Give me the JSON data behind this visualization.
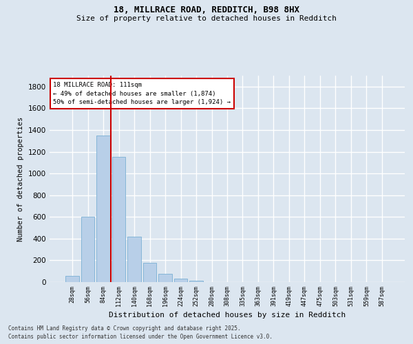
{
  "title_line1": "18, MILLRACE ROAD, REDDITCH, B98 8HX",
  "title_line2": "Size of property relative to detached houses in Redditch",
  "xlabel": "Distribution of detached houses by size in Redditch",
  "ylabel": "Number of detached properties",
  "categories": [
    "28sqm",
    "56sqm",
    "84sqm",
    "112sqm",
    "140sqm",
    "168sqm",
    "196sqm",
    "224sqm",
    "252sqm",
    "280sqm",
    "308sqm",
    "335sqm",
    "363sqm",
    "391sqm",
    "419sqm",
    "447sqm",
    "475sqm",
    "503sqm",
    "531sqm",
    "559sqm",
    "587sqm"
  ],
  "values": [
    60,
    600,
    1350,
    1150,
    420,
    175,
    75,
    30,
    10,
    0,
    0,
    0,
    0,
    0,
    0,
    0,
    0,
    0,
    0,
    0,
    0
  ],
  "bar_color": "#b8cfe8",
  "bar_edge_color": "#7aafd4",
  "vertical_line_color": "#cc0000",
  "annotation_text_line1": "18 MILLRACE ROAD: 111sqm",
  "annotation_text_line2": "← 49% of detached houses are smaller (1,874)",
  "annotation_text_line3": "50% of semi-detached houses are larger (1,924) →",
  "annotation_box_edge_color": "#cc0000",
  "annotation_box_fill": "#ffffff",
  "ylim": [
    0,
    1900
  ],
  "yticks": [
    0,
    200,
    400,
    600,
    800,
    1000,
    1200,
    1400,
    1600,
    1800
  ],
  "background_color": "#dce6f0",
  "grid_color": "#ffffff",
  "footer_line1": "Contains HM Land Registry data © Crown copyright and database right 2025.",
  "footer_line2": "Contains public sector information licensed under the Open Government Licence v3.0."
}
